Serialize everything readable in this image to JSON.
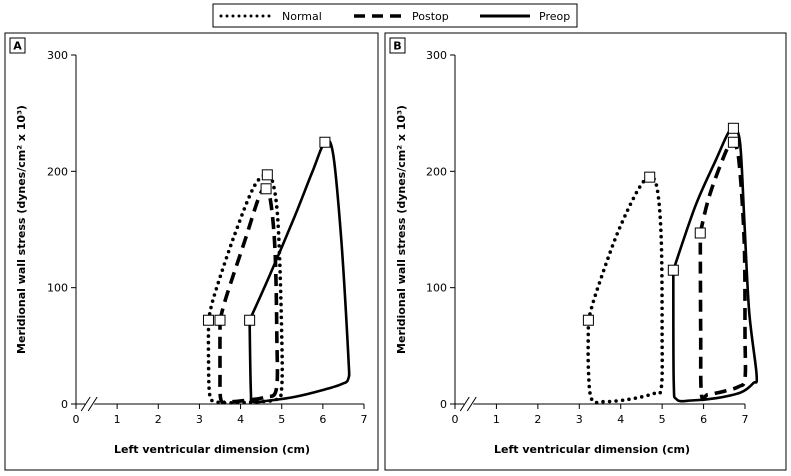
{
  "legend": {
    "entries": [
      {
        "name": "Normal",
        "style": "dotted"
      },
      {
        "name": "Postop",
        "style": "dashed"
      },
      {
        "name": "Preop",
        "style": "solid"
      }
    ]
  },
  "chart_data": [
    {
      "panel": "A",
      "type": "line",
      "xlabel": "Left ventricular dimension (cm)",
      "ylabel": "Meridional wall stress (dynes/cm² x 10³)",
      "xlim": [
        0,
        7
      ],
      "ylim": [
        0,
        300
      ],
      "xticks": [
        "0",
        "1",
        "2",
        "3",
        "4",
        "5",
        "6",
        "7"
      ],
      "yticks": [
        "0",
        "100",
        "200",
        "300"
      ],
      "axis_break": true,
      "series": [
        {
          "name": "Normal",
          "style": "dotted",
          "points": [
            [
              3.22,
              72
            ],
            [
              3.35,
              92
            ],
            [
              3.8,
              140
            ],
            [
              4.3,
              185
            ],
            [
              4.62,
              197
            ],
            [
              4.8,
              188
            ],
            [
              4.92,
              150
            ],
            [
              5.0,
              60
            ],
            [
              5.0,
              14
            ],
            [
              4.88,
              4
            ],
            [
              4.4,
              2
            ],
            [
              3.8,
              1
            ],
            [
              3.4,
              2
            ],
            [
              3.25,
              8
            ],
            [
              3.22,
              40
            ],
            [
              3.22,
              72
            ]
          ],
          "markers": [
            [
              3.22,
              72
            ],
            [
              4.65,
              197
            ]
          ]
        },
        {
          "name": "Postop",
          "style": "dashed",
          "points": [
            [
              3.5,
              72
            ],
            [
              3.65,
              92
            ],
            [
              4.1,
              140
            ],
            [
              4.45,
              178
            ],
            [
              4.62,
              185
            ],
            [
              4.74,
              172
            ],
            [
              4.84,
              130
            ],
            [
              4.88,
              60
            ],
            [
              4.87,
              13
            ],
            [
              4.6,
              6
            ],
            [
              4.1,
              3
            ],
            [
              3.7,
              2
            ],
            [
              3.52,
              4
            ],
            [
              3.5,
              30
            ],
            [
              3.5,
              72
            ]
          ],
          "markers": [
            [
              3.5,
              72
            ],
            [
              4.62,
              185
            ]
          ]
        },
        {
          "name": "Preop",
          "style": "solid",
          "points": [
            [
              4.22,
              72
            ],
            [
              4.7,
              110
            ],
            [
              5.3,
              160
            ],
            [
              5.75,
              200
            ],
            [
              6.05,
              225
            ],
            [
              6.25,
              215
            ],
            [
              6.45,
              140
            ],
            [
              6.62,
              40
            ],
            [
              6.62,
              22
            ],
            [
              6.45,
              17
            ],
            [
              6.0,
              12
            ],
            [
              5.3,
              6
            ],
            [
              4.7,
              3
            ],
            [
              4.3,
              2
            ],
            [
              4.25,
              10
            ],
            [
              4.22,
              72
            ]
          ],
          "markers": [
            [
              4.22,
              72
            ],
            [
              6.05,
              225
            ]
          ]
        }
      ]
    },
    {
      "panel": "B",
      "type": "line",
      "xlabel": "Left ventricular dimension (cm)",
      "ylabel": "Meridional wall stress (dynes/cm² x 10³)",
      "xlim": [
        0,
        7
      ],
      "ylim": [
        0,
        300
      ],
      "xticks": [
        "0",
        "1",
        "2",
        "3",
        "4",
        "5",
        "6",
        "7"
      ],
      "yticks": [
        "0",
        "100",
        "200",
        "300"
      ],
      "axis_break": true,
      "series": [
        {
          "name": "Normal",
          "style": "dotted",
          "points": [
            [
              3.22,
              72
            ],
            [
              3.4,
              95
            ],
            [
              3.9,
              145
            ],
            [
              4.4,
              183
            ],
            [
              4.7,
              195
            ],
            [
              4.88,
              185
            ],
            [
              4.98,
              140
            ],
            [
              5.0,
              60
            ],
            [
              4.98,
              14
            ],
            [
              4.8,
              9
            ],
            [
              4.2,
              4
            ],
            [
              3.6,
              2
            ],
            [
              3.3,
              4
            ],
            [
              3.22,
              30
            ],
            [
              3.22,
              72
            ]
          ],
          "markers": [
            [
              3.22,
              72
            ],
            [
              4.7,
              195
            ]
          ]
        },
        {
          "name": "Postop",
          "style": "dashed",
          "points": [
            [
              5.92,
              147
            ],
            [
              6.15,
              180
            ],
            [
              6.55,
              218
            ],
            [
              6.7,
              225
            ],
            [
              6.85,
              210
            ],
            [
              6.98,
              140
            ],
            [
              7.0,
              60
            ],
            [
              7.0,
              22
            ],
            [
              6.85,
              15
            ],
            [
              6.5,
              11
            ],
            [
              6.1,
              8
            ],
            [
              5.95,
              8
            ],
            [
              5.93,
              60
            ],
            [
              5.92,
              147
            ]
          ],
          "markers": [
            [
              5.92,
              147
            ],
            [
              6.72,
              225
            ]
          ]
        },
        {
          "name": "Preop",
          "style": "solid",
          "points": [
            [
              5.27,
              115
            ],
            [
              5.8,
              170
            ],
            [
              6.3,
              210
            ],
            [
              6.58,
              232
            ],
            [
              6.72,
              237
            ],
            [
              6.88,
              225
            ],
            [
              6.98,
              160
            ],
            [
              7.1,
              80
            ],
            [
              7.28,
              25
            ],
            [
              7.2,
              18
            ],
            [
              6.9,
              10
            ],
            [
              6.3,
              5
            ],
            [
              5.7,
              3
            ],
            [
              5.35,
              4
            ],
            [
              5.28,
              20
            ],
            [
              5.27,
              115
            ]
          ],
          "markers": [
            [
              5.27,
              115
            ],
            [
              6.72,
              237
            ]
          ]
        }
      ]
    }
  ]
}
